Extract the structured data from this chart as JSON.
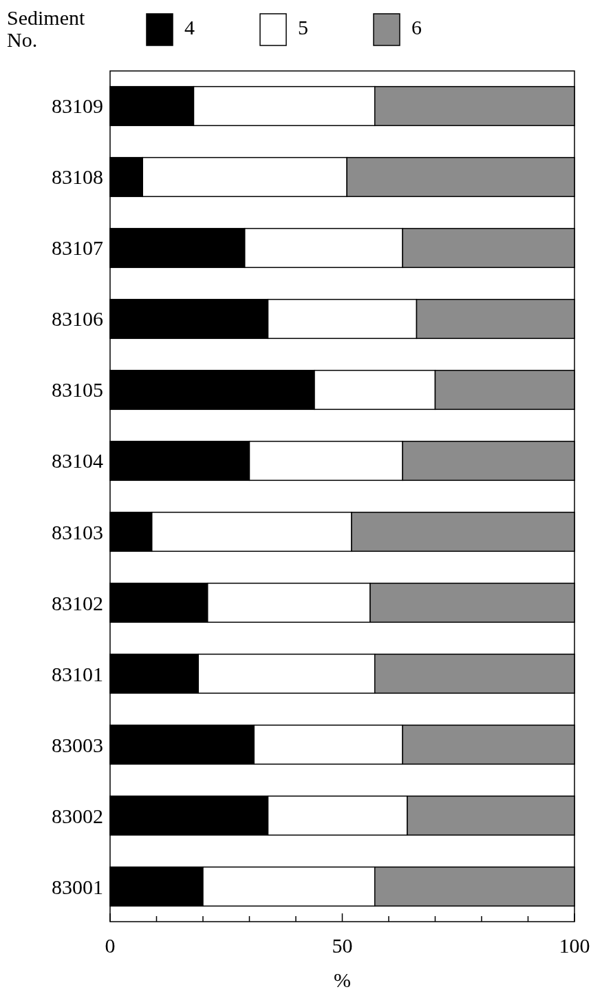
{
  "chart_data": {
    "type": "bar",
    "orientation": "horizontal",
    "stacked": true,
    "ylabel": "Sediment No.",
    "xlabel": "%",
    "categories": [
      "83109",
      "83108",
      "83107",
      "83106",
      "83105",
      "83104",
      "83103",
      "83102",
      "83101",
      "83003",
      "83002",
      "83001"
    ],
    "series": [
      {
        "name": "4",
        "color": "#000000",
        "values": [
          18,
          7,
          29,
          34,
          44,
          30,
          9,
          21,
          19,
          31,
          34,
          20
        ]
      },
      {
        "name": "5",
        "color": "#ffffff",
        "values": [
          39,
          44,
          34,
          32,
          26,
          33,
          43,
          35,
          38,
          32,
          30,
          37
        ]
      },
      {
        "name": "6",
        "color": "#8c8c8c",
        "values": [
          43,
          49,
          37,
          34,
          30,
          37,
          48,
          44,
          43,
          37,
          36,
          43
        ]
      }
    ],
    "xlim": [
      0,
      100
    ],
    "xticks": [
      0,
      {
        "value": 10,
        "label": null
      },
      {
        "value": 20,
        "label": null
      },
      {
        "value": 30,
        "label": null
      },
      {
        "value": 40,
        "label": null
      },
      50,
      {
        "value": 60,
        "label": null
      },
      {
        "value": 70,
        "label": null
      },
      {
        "value": 80,
        "label": null
      },
      {
        "value": 90,
        "label": null
      },
      100
    ],
    "legend": "top"
  }
}
